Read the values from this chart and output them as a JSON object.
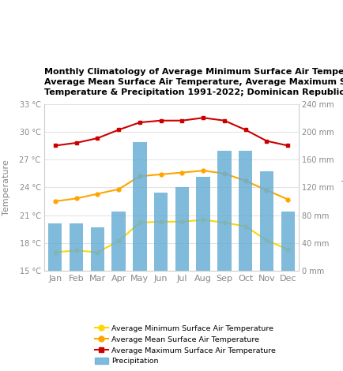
{
  "months": [
    "Jan",
    "Feb",
    "Mar",
    "Apr",
    "May",
    "Jun",
    "Jul",
    "Aug",
    "Sep",
    "Oct",
    "Nov",
    "Dec"
  ],
  "avg_min_temp": [
    17.0,
    17.2,
    17.0,
    18.2,
    20.2,
    20.3,
    20.3,
    20.5,
    20.2,
    19.8,
    18.3,
    17.3
  ],
  "avg_mean_temp": [
    22.5,
    22.8,
    23.3,
    23.8,
    25.2,
    25.4,
    25.6,
    25.8,
    25.5,
    24.7,
    23.7,
    22.7
  ],
  "avg_max_temp": [
    28.5,
    28.8,
    29.3,
    30.2,
    31.0,
    31.2,
    31.2,
    31.5,
    31.2,
    30.2,
    29.0,
    28.5
  ],
  "precipitation": [
    68,
    68,
    62,
    85,
    185,
    113,
    120,
    135,
    173,
    173,
    143,
    85
  ],
  "bar_color": "#6aafd6",
  "min_temp_color": "#FFD700",
  "mean_temp_color": "#FFA500",
  "max_temp_color": "#CC0000",
  "title_line1": "Monthly Climatology of Average Minimum Surface Air Temperatu",
  "title_line2": "Average Mean Surface Air Temperature, Average Maximum Surfa",
  "title_line3": "Temperature & Precipitation 1991-2022; Dominican Republic",
  "ylabel_left": "Temperature",
  "ylabel_right": "Precipitation",
  "ylim_left": [
    15,
    33
  ],
  "ylim_right": [
    0,
    240
  ],
  "yticks_left": [
    15,
    18,
    21,
    24,
    27,
    30,
    33
  ],
  "ytick_labels_left": [
    "15 °C",
    "18 °C",
    "21 °C",
    "24 °C",
    "27 °C",
    "30 °C",
    "33 °C"
  ],
  "yticks_right": [
    0,
    40,
    80,
    120,
    160,
    200,
    240
  ],
  "ytick_labels_right": [
    "0 mm",
    "40 mm",
    "80 mm",
    "120 mm",
    "160 mm",
    "200 mm",
    "240 mm"
  ],
  "legend_labels": [
    "Average Minimum Surface Air Temperature",
    "Average Mean Surface Air Temperature",
    "Average Maximum Surface Air Temperature",
    "Precipitation"
  ]
}
